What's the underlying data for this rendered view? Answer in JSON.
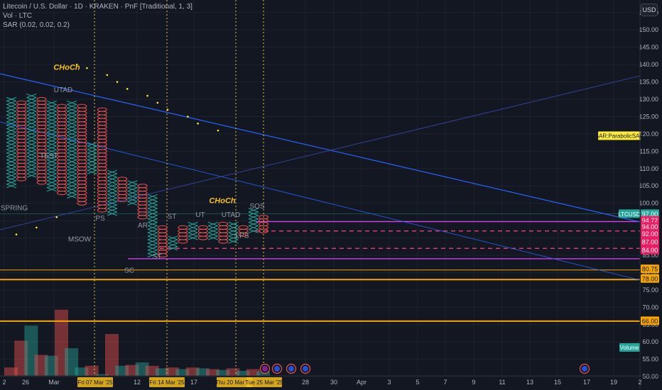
{
  "header": {
    "title": "Litecoin / U.S. Dollar · 1D · KRAKEN · PnF [Traditional, 1, 3]",
    "vol_label": "Vol · LTC",
    "sar_label": "SAR (0.02, 0.02, 0.2)",
    "currency_button": "USD"
  },
  "chart_data": {
    "type": "point-and-figure",
    "symbol": "LTCUSD",
    "ylim": [
      49,
      157
    ],
    "y_ticks": [
      50,
      55,
      60,
      65,
      70,
      75,
      80,
      85,
      90,
      95,
      100,
      105,
      110,
      115,
      120,
      125,
      130,
      135,
      140,
      145,
      150,
      155
    ],
    "x_labels": [
      "2",
      "26",
      "Mar",
      "12",
      "17",
      "28",
      "30",
      "Apr",
      "3",
      "5",
      "7",
      "9",
      "11",
      "13",
      "15",
      "17",
      "19",
      "2"
    ],
    "date_markers": [
      "Fri 07 Mar '25",
      "Fri 14 Mar '25",
      "Thu 20 Mar '25",
      "Tue 25 Mar '25"
    ],
    "price_labels": [
      {
        "label": "LTCUSD",
        "value": "97.00",
        "color": "#26a69a"
      },
      {
        "value": "94.72",
        "color": "#e91e63"
      },
      {
        "value": "94.00",
        "color": "#e91e63"
      },
      {
        "value": "92.00",
        "color": "#e91e63"
      },
      {
        "value": "87.00",
        "color": "#e91e63"
      },
      {
        "value": "84.00",
        "color": "#e91e63"
      },
      {
        "value": "80.75",
        "color": "#f7a600"
      },
      {
        "value": "78.00",
        "color": "#f7a600"
      },
      {
        "value": "66.00",
        "color": "#f7a600"
      }
    ],
    "sar_tag": "SAR:ParabolicSAR",
    "volume_tag": "Volume",
    "annotations": [
      "CHoCh",
      "UTAD",
      "TEST",
      "SPRING",
      "MSOW",
      "PS",
      "AR",
      "ST",
      "SC",
      "ST",
      "UT",
      "UTAD",
      "LPS",
      "SOS",
      "CHoCh"
    ],
    "pnf_columns": [
      {
        "type": "X",
        "low": 105,
        "high": 130
      },
      {
        "type": "O",
        "low": 107,
        "high": 129
      },
      {
        "type": "X",
        "low": 108,
        "high": 131
      },
      {
        "type": "O",
        "low": 106,
        "high": 130
      },
      {
        "type": "X",
        "low": 104,
        "high": 129
      },
      {
        "type": "O",
        "low": 103,
        "high": 128
      },
      {
        "type": "X",
        "low": 102,
        "high": 129
      },
      {
        "type": "O",
        "low": 100,
        "high": 128
      },
      {
        "type": "X",
        "low": 109,
        "high": 117
      },
      {
        "type": "O",
        "low": 98,
        "high": 127
      },
      {
        "type": "X",
        "low": 97,
        "high": 109
      },
      {
        "type": "O",
        "low": 101,
        "high": 107
      },
      {
        "type": "X",
        "low": 100,
        "high": 106
      },
      {
        "type": "O",
        "low": 96,
        "high": 105
      },
      {
        "type": "X",
        "low": 85,
        "high": 102
      },
      {
        "type": "O",
        "low": 85,
        "high": 93
      },
      {
        "type": "X",
        "low": 87,
        "high": 90
      },
      {
        "type": "O",
        "low": 89,
        "high": 93
      },
      {
        "type": "X",
        "low": 90,
        "high": 94
      },
      {
        "type": "O",
        "low": 90,
        "high": 93
      },
      {
        "type": "X",
        "low": 90,
        "high": 94
      },
      {
        "type": "O",
        "low": 89,
        "high": 94
      },
      {
        "type": "X",
        "low": 89,
        "high": 94
      },
      {
        "type": "O",
        "low": 91,
        "high": 93
      },
      {
        "type": "X",
        "low": 92,
        "high": 98
      },
      {
        "type": "O",
        "low": 92,
        "high": 96
      }
    ],
    "sar_dots": [
      {
        "col": 0,
        "value": 91
      },
      {
        "col": 2,
        "value": 93
      },
      {
        "col": 4,
        "value": 96
      },
      {
        "col": 6,
        "value": 140
      },
      {
        "col": 7,
        "value": 139
      },
      {
        "col": 9,
        "value": 137
      },
      {
        "col": 10,
        "value": 135
      },
      {
        "col": 11,
        "value": 133
      },
      {
        "col": 13,
        "value": 131
      },
      {
        "col": 14,
        "value": 129
      },
      {
        "col": 15,
        "value": 127
      },
      {
        "col": 17,
        "value": 125
      },
      {
        "col": 18,
        "value": 123
      },
      {
        "col": 20,
        "value": 121
      }
    ],
    "volume": {
      "ylim": [
        0,
        100
      ],
      "values": [
        10,
        42,
        60,
        25,
        24,
        79,
        33,
        10,
        12,
        2,
        50,
        12,
        13,
        16,
        12,
        9,
        10,
        8,
        10,
        9,
        8,
        7,
        9,
        6,
        8,
        5
      ],
      "colors": [
        "#ef5350",
        "#ef5350",
        "#26a69a",
        "#ef5350",
        "#26a69a",
        "#ef5350",
        "#26a69a",
        "#26a69a",
        "#ef5350",
        "#26a69a",
        "#ef5350",
        "#26a69a",
        "#ef5350",
        "#26a69a",
        "#ef5350",
        "#26a69a",
        "#ef5350",
        "#26a69a",
        "#ef5350",
        "#26a69a",
        "#ef5350",
        "#26a69a",
        "#ef5350",
        "#26a69a",
        "#ef5350",
        "#26a69a"
      ]
    }
  }
}
